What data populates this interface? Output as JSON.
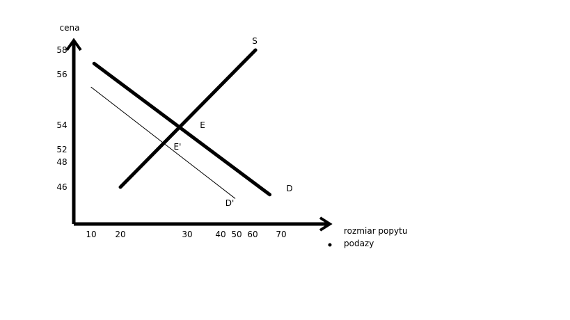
{
  "chart_data": {
    "type": "line",
    "ylabel": "cena",
    "xlabel_lines": [
      "rozmiar popytu",
      "podazy"
    ],
    "y_ticks": [
      "58",
      "56",
      "54",
      "52",
      "48",
      "46"
    ],
    "x_ticks": [
      "10",
      "20",
      "30",
      "40",
      "50",
      "60",
      "70"
    ],
    "series": [
      {
        "name": "S",
        "points": [
          [
            20,
            46
          ],
          [
            61,
            58
          ]
        ],
        "weight": "bold"
      },
      {
        "name": "D",
        "points": [
          [
            11,
            56.9
          ],
          [
            66,
            45.4
          ]
        ],
        "weight": "bold"
      },
      {
        "name": "D'",
        "points": [
          [
            10,
            55.5
          ],
          [
            49,
            45.1
          ]
        ],
        "weight": "thin"
      }
    ],
    "points": [
      {
        "name": "E",
        "x": 31,
        "y": 54
      },
      {
        "name": "E'",
        "x": 28,
        "y": 52.1
      }
    ]
  }
}
